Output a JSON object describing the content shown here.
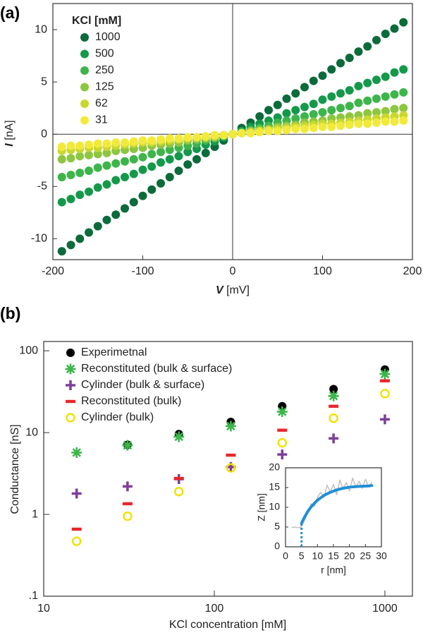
{
  "chart_data": [
    {
      "type": "scatter",
      "panel_label": "(a)",
      "xlabel_symbol": "V",
      "xlabel_unit": "[mV]",
      "ylabel_symbol": "I",
      "ylabel_unit": "[nA]",
      "legend_title": "KCl [mM]",
      "legend_position": "upper left",
      "zero_lines": true,
      "xlim": [
        -200,
        200
      ],
      "xticks": [
        -200,
        -100,
        0,
        100,
        200
      ],
      "ylim": [
        -12,
        12.5
      ],
      "yticks": [
        -10,
        -5,
        0,
        5,
        10
      ],
      "x": [
        -190,
        -180,
        -170,
        -160,
        -150,
        -140,
        -130,
        -120,
        -110,
        -100,
        -90,
        -80,
        -70,
        -60,
        -50,
        -40,
        -30,
        -20,
        -10,
        0,
        10,
        20,
        30,
        40,
        50,
        60,
        70,
        80,
        90,
        100,
        110,
        120,
        130,
        140,
        150,
        160,
        170,
        180,
        190
      ],
      "series": [
        {
          "name": "1000",
          "color": "#0b6b3a",
          "values": [
            -11.2,
            -10.6,
            -10.0,
            -9.4,
            -8.8,
            -8.2,
            -7.7,
            -7.1,
            -6.5,
            -5.9,
            -5.3,
            -4.7,
            -4.1,
            -3.5,
            -2.9,
            -2.4,
            -1.8,
            -1.2,
            -0.6,
            0,
            0.6,
            1.1,
            1.7,
            2.3,
            2.8,
            3.4,
            3.9,
            4.5,
            5.1,
            5.6,
            6.2,
            6.8,
            7.3,
            7.9,
            8.4,
            9.0,
            9.6,
            10.1,
            10.7
          ]
        },
        {
          "name": "500",
          "color": "#14994a",
          "values": [
            -6.5,
            -6.2,
            -5.8,
            -5.5,
            -5.1,
            -4.8,
            -4.4,
            -4.1,
            -3.8,
            -3.4,
            -3.1,
            -2.7,
            -2.4,
            -2.1,
            -1.7,
            -1.4,
            -1.0,
            -0.7,
            -0.3,
            0,
            0.3,
            0.7,
            1.0,
            1.3,
            1.6,
            2.0,
            2.3,
            2.6,
            2.9,
            3.3,
            3.6,
            3.9,
            4.2,
            4.6,
            4.9,
            5.2,
            5.5,
            5.9,
            6.2
          ]
        },
        {
          "name": "250",
          "color": "#3db54b",
          "values": [
            -4.1,
            -3.9,
            -3.7,
            -3.5,
            -3.2,
            -3.0,
            -2.8,
            -2.6,
            -2.4,
            -2.2,
            -1.9,
            -1.7,
            -1.5,
            -1.3,
            -1.1,
            -0.9,
            -0.6,
            -0.4,
            -0.2,
            0,
            0.2,
            0.4,
            0.6,
            0.8,
            1.1,
            1.3,
            1.5,
            1.7,
            1.9,
            2.1,
            2.3,
            2.5,
            2.7,
            3.0,
            3.2,
            3.4,
            3.6,
            3.8,
            4.0
          ]
        },
        {
          "name": "125",
          "color": "#8dc63f",
          "values": [
            -2.4,
            -2.3,
            -2.1,
            -2.0,
            -1.9,
            -1.8,
            -1.6,
            -1.5,
            -1.4,
            -1.3,
            -1.1,
            -1.0,
            -0.9,
            -0.8,
            -0.6,
            -0.5,
            -0.4,
            -0.3,
            -0.1,
            0,
            0.1,
            0.3,
            0.4,
            0.5,
            0.7,
            0.8,
            0.9,
            1.1,
            1.2,
            1.3,
            1.5,
            1.6,
            1.7,
            1.8,
            2.0,
            2.1,
            2.2,
            2.4,
            2.5
          ]
        },
        {
          "name": "62",
          "color": "#c9d82b",
          "values": [
            -1.6,
            -1.5,
            -1.4,
            -1.3,
            -1.3,
            -1.2,
            -1.1,
            -1.0,
            -0.9,
            -0.8,
            -0.8,
            -0.7,
            -0.6,
            -0.5,
            -0.4,
            -0.3,
            -0.3,
            -0.2,
            -0.1,
            0,
            0.1,
            0.2,
            0.3,
            0.4,
            0.5,
            0.6,
            0.7,
            0.8,
            0.9,
            1.0,
            1.0,
            1.1,
            1.2,
            1.3,
            1.4,
            1.5,
            1.6,
            1.7,
            1.8
          ]
        },
        {
          "name": "31",
          "color": "#f2ea3b",
          "values": [
            -1.2,
            -1.1,
            -1.1,
            -1.0,
            -0.9,
            -0.9,
            -0.8,
            -0.8,
            -0.7,
            -0.6,
            -0.6,
            -0.5,
            -0.4,
            -0.4,
            -0.3,
            -0.3,
            -0.2,
            -0.1,
            -0.1,
            0,
            0.1,
            0.1,
            0.2,
            0.3,
            0.3,
            0.4,
            0.5,
            0.5,
            0.6,
            0.7,
            0.7,
            0.8,
            0.9,
            1.0,
            1.0,
            1.1,
            1.2,
            1.2,
            1.3
          ]
        }
      ]
    },
    {
      "type": "scatter",
      "panel_label": "(b)",
      "xlabel": "KCl concentration [mM]",
      "ylabel": "Conductance [nS]",
      "xscale": "log",
      "yscale": "log",
      "legend_position": "upper left",
      "xlim": [
        10,
        1450
      ],
      "xticks": [
        10,
        100,
        1000
      ],
      "ylim": [
        0.1,
        130
      ],
      "yticks": [
        {
          "value": 0.1,
          "label": ".1"
        },
        1,
        10,
        100
      ],
      "x": [
        15.6,
        31,
        62,
        125,
        250,
        500,
        1000
      ],
      "series": [
        {
          "name": "Experimetnal",
          "marker": "circle",
          "color": "#000000",
          "values": [
            null,
            7.1,
            9.6,
            13.5,
            21,
            34,
            59
          ]
        },
        {
          "name": "Reconstituted (bulk & surface)",
          "marker": "asterisk",
          "color": "#3cb54a",
          "values": [
            5.7,
            7.0,
            8.9,
            12,
            18,
            28,
            52
          ]
        },
        {
          "name": "Cylinder (bulk & surface)",
          "marker": "plus",
          "color": "#7d3f98",
          "values": [
            1.8,
            2.2,
            2.7,
            3.8,
            5.4,
            8.5,
            14.5
          ]
        },
        {
          "name": "Reconstituted (bulk)",
          "marker": "dash",
          "color": "#e8262b",
          "values": [
            0.66,
            1.35,
            2.75,
            5.3,
            10.7,
            21,
            43
          ]
        },
        {
          "name": "Cylinder (bulk)",
          "marker": "ring",
          "color": "#f0e100",
          "values": [
            0.47,
            0.95,
            1.9,
            3.7,
            7.5,
            15,
            30
          ]
        }
      ]
    },
    {
      "type": "line",
      "inset": true,
      "xlabel": "r [nm]",
      "ylabel": "Z [nm]",
      "xlim": [
        0,
        30
      ],
      "xticks": [
        0,
        5,
        10,
        15,
        20,
        25,
        30
      ],
      "ylim": [
        0,
        20
      ],
      "yticks": [
        0,
        5,
        10,
        15,
        20
      ],
      "cutoff_x": 5,
      "series": [
        {
          "color": "#bdbdbd",
          "x": [
            2,
            3,
            4,
            5,
            6,
            7,
            8,
            9,
            10,
            11,
            12,
            13,
            14,
            15,
            16,
            17,
            18,
            19,
            20,
            21,
            22,
            23,
            24,
            25,
            26,
            27
          ],
          "values": [
            4.9,
            5.0,
            4.8,
            5.1,
            6.8,
            8.7,
            10.9,
            10.2,
            12.5,
            13.8,
            12.4,
            15.6,
            13.9,
            15.8,
            13.2,
            16.9,
            14.6,
            16.3,
            14.1,
            17.4,
            15.2,
            16.6,
            14.8,
            17.1,
            15.3,
            16.2
          ]
        },
        {
          "color": "#1f8fd6",
          "x": [
            5,
            6,
            7,
            8,
            9,
            10,
            12,
            14,
            16,
            18,
            20,
            23,
            26,
            27
          ],
          "values": [
            6.0,
            7.6,
            9.0,
            10.1,
            11.0,
            11.8,
            13.0,
            13.8,
            14.4,
            14.8,
            15.1,
            15.3,
            15.4,
            15.5
          ]
        }
      ]
    }
  ]
}
